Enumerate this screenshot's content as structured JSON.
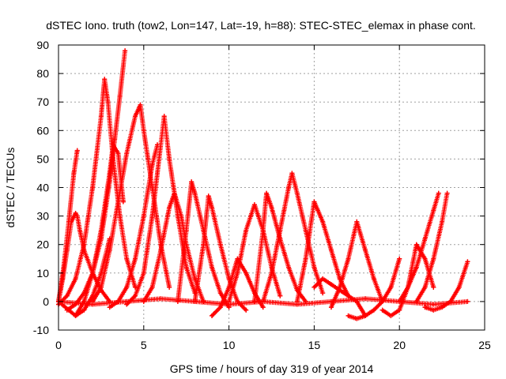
{
  "chart_data": {
    "type": "scatter",
    "title": "dSTEC Iono. truth (tow2, Lon=147, Lat=-19, h=88): STEC-STEC_elemax in phase cont.",
    "xlabel": "GPS time / hours of day 319 of year 2014",
    "ylabel": "dSTEC  / TECUs",
    "xlim": [
      0,
      25
    ],
    "ylim": [
      -10,
      90
    ],
    "x_ticks": [
      0,
      5,
      10,
      15,
      20,
      25
    ],
    "y_ticks": [
      -10,
      0,
      10,
      20,
      30,
      40,
      50,
      60,
      70,
      80,
      90
    ],
    "grid": true,
    "marker": "+",
    "color": "#ff0000",
    "series": [
      {
        "x": [
          0.0,
          0.25,
          0.5,
          0.75,
          1.0,
          1.1,
          1.25,
          1.5,
          2.0,
          2.5,
          3.0
        ],
        "y": [
          0,
          8,
          18,
          28,
          31,
          30,
          25,
          18,
          10,
          4,
          0
        ]
      },
      {
        "x": [
          0.0,
          0.3,
          0.6,
          0.9,
          1.1
        ],
        "y": [
          0,
          12,
          28,
          45,
          53
        ]
      },
      {
        "x": [
          0.0,
          0.5,
          1.0,
          1.5,
          2.0,
          2.5,
          2.7,
          2.9,
          3.2,
          3.6,
          4.0,
          4.5
        ],
        "y": [
          -1,
          2,
          8,
          20,
          40,
          65,
          78,
          70,
          50,
          30,
          15,
          5
        ]
      },
      {
        "x": [
          0.5,
          1.0,
          1.5,
          2.0,
          2.5,
          3.0,
          3.3,
          3.6,
          3.9
        ],
        "y": [
          -3,
          -1,
          3,
          10,
          22,
          42,
          57,
          72,
          88
        ]
      },
      {
        "x": [
          1.0,
          1.5,
          2.0,
          2.5,
          3.0,
          3.2,
          3.5,
          3.8
        ],
        "y": [
          -5,
          0,
          10,
          25,
          45,
          55,
          52,
          35
        ]
      },
      {
        "x": [
          0.2,
          0.6,
          1.0,
          1.5,
          2.0,
          2.5,
          3.0
        ],
        "y": [
          -1,
          -3,
          -5,
          -3,
          2,
          10,
          22
        ]
      },
      {
        "x": [
          2.0,
          2.5,
          3.0,
          3.5,
          4.0,
          4.5,
          4.8,
          5.0,
          5.5,
          6.0,
          6.5
        ],
        "y": [
          0,
          5,
          18,
          35,
          52,
          65,
          69,
          60,
          40,
          20,
          5
        ]
      },
      {
        "x": [
          3.0,
          3.5,
          4.0,
          4.5,
          5.0,
          5.5,
          5.8
        ],
        "y": [
          -2,
          0,
          5,
          15,
          30,
          48,
          55
        ]
      },
      {
        "x": [
          4.0,
          4.5,
          5.0,
          5.5,
          5.8,
          6.2,
          6.5,
          7.0,
          7.5,
          8.0
        ],
        "y": [
          -1,
          2,
          10,
          30,
          45,
          65,
          50,
          30,
          12,
          3
        ]
      },
      {
        "x": [
          5.0,
          5.5,
          6.0,
          6.5,
          6.8,
          7.2,
          7.5,
          8.0,
          8.5
        ],
        "y": [
          0,
          5,
          18,
          33,
          38,
          30,
          20,
          8,
          0
        ]
      },
      {
        "x": [
          7.0,
          7.5,
          7.8,
          8.0,
          8.5,
          9.0,
          9.5,
          10.0
        ],
        "y": [
          0,
          25,
          42,
          38,
          25,
          12,
          3,
          -2
        ]
      },
      {
        "x": [
          8.0,
          8.5,
          8.8,
          9.0,
          9.5,
          10.0,
          10.5,
          11.0
        ],
        "y": [
          0,
          20,
          37,
          33,
          20,
          8,
          0,
          -3
        ]
      },
      {
        "x": [
          9.0,
          9.5,
          10.0,
          10.5,
          11.0,
          11.5,
          12.0
        ],
        "y": [
          -5,
          -2,
          5,
          15,
          10,
          3,
          -2
        ]
      },
      {
        "x": [
          10.0,
          10.5,
          11.0,
          11.5,
          12.0,
          12.5,
          13.0
        ],
        "y": [
          0,
          10,
          25,
          34,
          25,
          12,
          2
        ]
      },
      {
        "x": [
          11.5,
          12.0,
          12.2,
          12.5,
          13.0,
          13.5,
          14.0,
          14.5
        ],
        "y": [
          0,
          25,
          38,
          33,
          22,
          12,
          4,
          0
        ]
      },
      {
        "x": [
          12.0,
          12.5,
          13.0,
          13.5,
          13.7,
          14.0,
          14.5,
          15.0,
          15.5
        ],
        "y": [
          0,
          10,
          25,
          40,
          45,
          38,
          25,
          12,
          3
        ]
      },
      {
        "x": [
          14.0,
          14.5,
          15.0,
          15.5,
          16.0,
          16.5,
          17.0
        ],
        "y": [
          0,
          15,
          35,
          28,
          18,
          8,
          2
        ]
      },
      {
        "x": [
          15.0,
          15.5,
          16.0,
          16.5,
          17.0,
          17.5,
          18.0
        ],
        "y": [
          5,
          8,
          6,
          4,
          2,
          0,
          -5
        ]
      },
      {
        "x": [
          16.0,
          16.5,
          17.0,
          17.5,
          18.0,
          18.5,
          19.0
        ],
        "y": [
          -2,
          5,
          15,
          28,
          18,
          8,
          0
        ]
      },
      {
        "x": [
          17.0,
          17.5,
          18.0,
          18.5,
          19.0,
          19.5,
          20.0
        ],
        "y": [
          -5,
          -6,
          -5,
          -3,
          0,
          5,
          15
        ]
      },
      {
        "x": [
          19.0,
          19.5,
          20.0,
          20.5,
          21.0,
          21.5,
          22.0
        ],
        "y": [
          -3,
          -5,
          -3,
          5,
          20,
          15,
          5
        ]
      },
      {
        "x": [
          20.0,
          20.5,
          21.0,
          21.5,
          22.0,
          22.3
        ],
        "y": [
          0,
          5,
          12,
          22,
          32,
          38
        ]
      },
      {
        "x": [
          21.0,
          21.5,
          22.0,
          22.5,
          22.8
        ],
        "y": [
          0,
          5,
          15,
          28,
          38
        ]
      },
      {
        "x": [
          21.5,
          22.0,
          22.5,
          23.0,
          23.5,
          24.0
        ],
        "y": [
          -2,
          -3,
          -2,
          0,
          5,
          14
        ]
      },
      {
        "x": [
          0.0,
          2.0,
          4.0,
          6.0,
          8.0,
          10.0,
          12.0,
          14.0,
          16.0,
          18.0,
          20.0,
          22.0,
          24.0
        ],
        "y": [
          0,
          -1,
          0,
          1,
          0,
          -1,
          0,
          -1,
          0,
          1,
          0,
          -1,
          0
        ]
      }
    ]
  }
}
